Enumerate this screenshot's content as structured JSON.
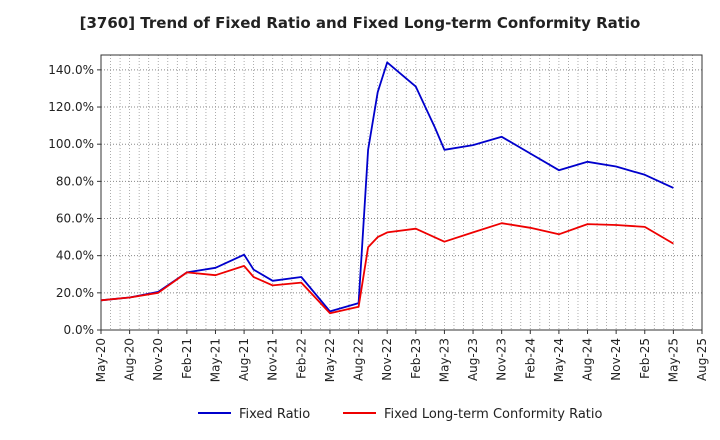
{
  "chart_data": {
    "type": "line",
    "title": "[3760]  Trend of Fixed Ratio and Fixed Long-term Conformity Ratio",
    "xlabel": "",
    "ylabel": "",
    "x_ticks": [
      "May-20",
      "Aug-20",
      "Nov-20",
      "Feb-21",
      "May-21",
      "Aug-21",
      "Nov-21",
      "Feb-22",
      "May-22",
      "Aug-22",
      "Nov-22",
      "Feb-23",
      "May-23",
      "Aug-23",
      "Nov-23",
      "Feb-24",
      "May-24",
      "Aug-24",
      "Nov-24",
      "Feb-25",
      "May-25",
      "Aug-25"
    ],
    "y_ticks": [
      "0.0%",
      "20.0%",
      "40.0%",
      "60.0%",
      "80.0%",
      "100.0%",
      "120.0%",
      "140.0%"
    ],
    "ylim": [
      0,
      148
    ],
    "grid": true,
    "legend_position": "bottom",
    "series": [
      {
        "name": "Fixed Ratio",
        "color": "#0000cc",
        "points": [
          [
            "May-20",
            16.0
          ],
          [
            "Aug-20",
            17.5
          ],
          [
            "Nov-20",
            20.5
          ],
          [
            "Feb-21",
            31.0
          ],
          [
            "May-21",
            33.5
          ],
          [
            "Aug-21",
            40.5
          ],
          [
            "Sep-21",
            32.5
          ],
          [
            "Nov-21",
            26.5
          ],
          [
            "Feb-22",
            28.5
          ],
          [
            "May-22",
            10.0
          ],
          [
            "Aug-22",
            14.5
          ],
          [
            "Sep-22",
            97.0
          ],
          [
            "Oct-22",
            128.0
          ],
          [
            "Nov-22",
            144.0
          ],
          [
            "Feb-23",
            131.0
          ],
          [
            "Apr-23",
            109.0
          ],
          [
            "May-23",
            97.0
          ],
          [
            "Aug-23",
            99.5
          ],
          [
            "Nov-23",
            104.0
          ],
          [
            "Feb-24",
            95.0
          ],
          [
            "May-24",
            86.0
          ],
          [
            "Aug-24",
            90.5
          ],
          [
            "Nov-24",
            88.0
          ],
          [
            "Feb-25",
            83.5
          ],
          [
            "May-25",
            76.5
          ]
        ]
      },
      {
        "name": "Fixed Long-term Conformity Ratio",
        "color": "#ee0000",
        "points": [
          [
            "May-20",
            16.0
          ],
          [
            "Aug-20",
            17.5
          ],
          [
            "Nov-20",
            20.0
          ],
          [
            "Feb-21",
            31.0
          ],
          [
            "May-21",
            29.5
          ],
          [
            "Aug-21",
            34.5
          ],
          [
            "Sep-21",
            28.5
          ],
          [
            "Nov-21",
            24.0
          ],
          [
            "Feb-22",
            25.5
          ],
          [
            "May-22",
            9.0
          ],
          [
            "Aug-22",
            12.5
          ],
          [
            "Sep-22",
            44.5
          ],
          [
            "Oct-22",
            50.0
          ],
          [
            "Nov-22",
            52.5
          ],
          [
            "Feb-23",
            54.5
          ],
          [
            "May-23",
            47.5
          ],
          [
            "Aug-23",
            52.5
          ],
          [
            "Nov-23",
            57.5
          ],
          [
            "Feb-24",
            55.0
          ],
          [
            "May-24",
            51.5
          ],
          [
            "Aug-24",
            57.0
          ],
          [
            "Nov-24",
            56.5
          ],
          [
            "Feb-25",
            55.5
          ],
          [
            "May-25",
            46.5
          ]
        ]
      }
    ]
  }
}
